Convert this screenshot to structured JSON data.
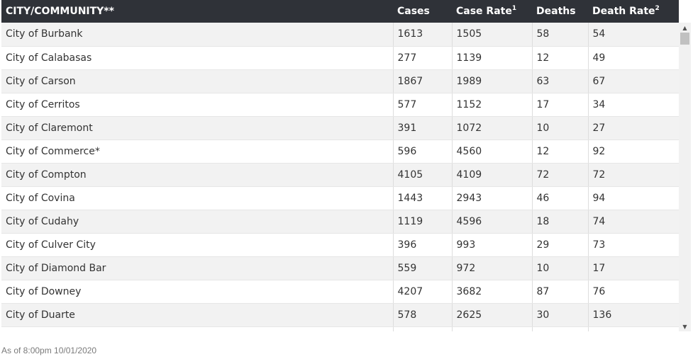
{
  "table": {
    "headers": {
      "city": "CITY/COMMUNITY**",
      "cases": "Cases",
      "case_rate": "Case Rate",
      "case_rate_sup": "1",
      "deaths": "Deaths",
      "death_rate": "Death Rate",
      "death_rate_sup": "2"
    },
    "rows": [
      {
        "city": "City of Burbank",
        "cases": "1613",
        "case_rate": "1505",
        "deaths": "58",
        "death_rate": "54"
      },
      {
        "city": "City of Calabasas",
        "cases": "277",
        "case_rate": "1139",
        "deaths": "12",
        "death_rate": "49"
      },
      {
        "city": "City of Carson",
        "cases": "1867",
        "case_rate": "1989",
        "deaths": "63",
        "death_rate": "67"
      },
      {
        "city": "City of Cerritos",
        "cases": "577",
        "case_rate": "1152",
        "deaths": "17",
        "death_rate": "34"
      },
      {
        "city": "City of Claremont",
        "cases": "391",
        "case_rate": "1072",
        "deaths": "10",
        "death_rate": "27"
      },
      {
        "city": "City of Commerce*",
        "cases": "596",
        "case_rate": "4560",
        "deaths": "12",
        "death_rate": "92"
      },
      {
        "city": "City of Compton",
        "cases": "4105",
        "case_rate": "4109",
        "deaths": "72",
        "death_rate": "72"
      },
      {
        "city": "City of Covina",
        "cases": "1443",
        "case_rate": "2943",
        "deaths": "46",
        "death_rate": "94"
      },
      {
        "city": "City of Cudahy",
        "cases": "1119",
        "case_rate": "4596",
        "deaths": "18",
        "death_rate": "74"
      },
      {
        "city": "City of Culver City",
        "cases": "396",
        "case_rate": "993",
        "deaths": "29",
        "death_rate": "73"
      },
      {
        "city": "City of Diamond Bar",
        "cases": "559",
        "case_rate": "972",
        "deaths": "10",
        "death_rate": "17"
      },
      {
        "city": "City of Downey",
        "cases": "4207",
        "case_rate": "3682",
        "deaths": "87",
        "death_rate": "76"
      },
      {
        "city": "City of Duarte",
        "cases": "578",
        "case_rate": "2625",
        "deaths": "30",
        "death_rate": "136"
      },
      {
        "city": "",
        "cases": "",
        "case_rate": "",
        "deaths": "",
        "death_rate": ""
      }
    ]
  },
  "scrollbar": {
    "up_icon": "scroll-up-arrow",
    "down_icon": "scroll-down-arrow",
    "position": 0.0
  },
  "footer": {
    "note": "As of 8:00pm 10/01/2020"
  }
}
